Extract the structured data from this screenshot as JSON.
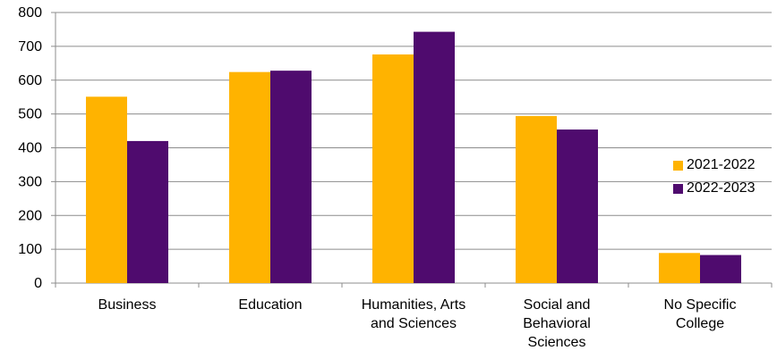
{
  "chart_data": {
    "type": "bar",
    "title": "",
    "xlabel": "",
    "ylabel": "",
    "ylim": [
      0,
      800
    ],
    "yticks": [
      "0",
      "100",
      "200",
      "300",
      "400",
      "500",
      "600",
      "700",
      "800"
    ],
    "grid": true,
    "legend_position": "right",
    "categories": [
      [
        "Business"
      ],
      [
        "Education"
      ],
      [
        "Humanities, Arts",
        "and Sciences"
      ],
      [
        "Social and",
        "Behavioral",
        "Sciences"
      ],
      [
        "No Specific",
        "College"
      ]
    ],
    "series": [
      {
        "name": "2021-2022",
        "color": "#FFB300",
        "values": [
          551,
          624,
          676,
          494,
          89
        ]
      },
      {
        "name": "2022-2023",
        "color": "#4F0B6E",
        "values": [
          420,
          628,
          743,
          454,
          83
        ]
      }
    ]
  }
}
